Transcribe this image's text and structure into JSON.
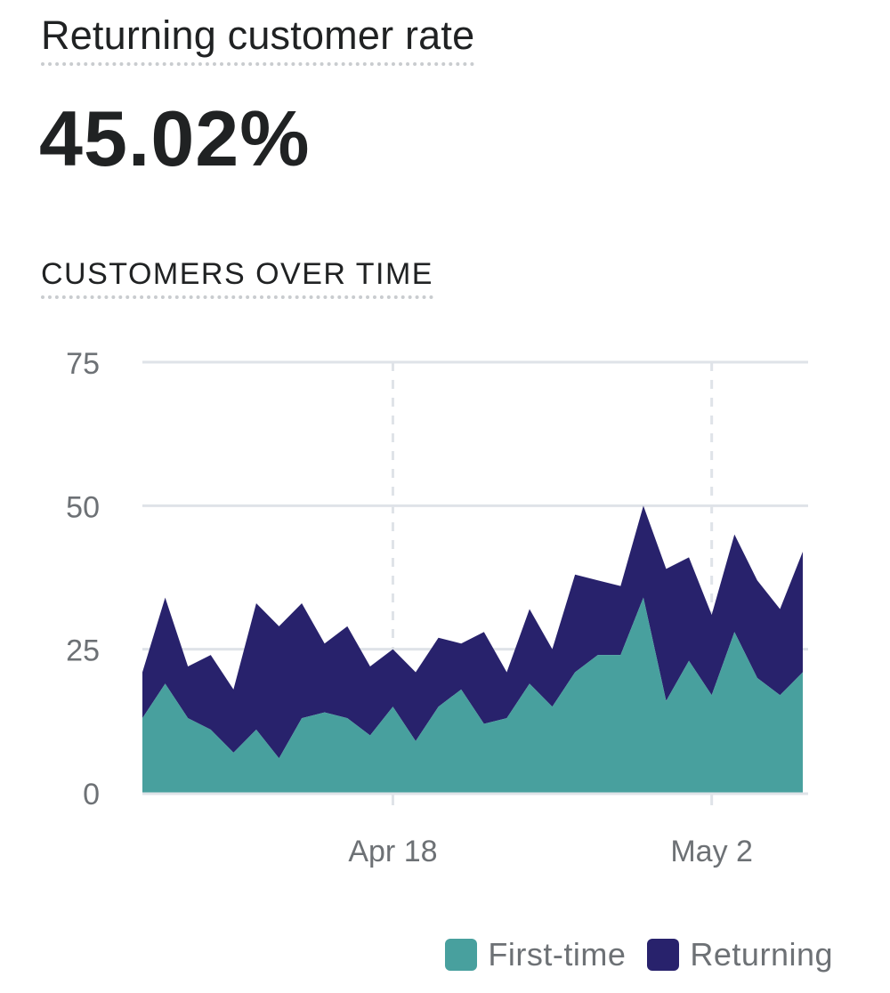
{
  "metric": {
    "title": "Returning customer rate",
    "value": "45.02%"
  },
  "section": {
    "title": "CUSTOMERS OVER TIME"
  },
  "colors": {
    "first_time": "#48a09e",
    "returning": "#28226c",
    "grid": "#dfe3e8",
    "axis_text": "#6d7175"
  },
  "chart_data": {
    "type": "area",
    "stacked": true,
    "x": [
      "Apr 7",
      "Apr 8",
      "Apr 9",
      "Apr 10",
      "Apr 11",
      "Apr 12",
      "Apr 13",
      "Apr 14",
      "Apr 15",
      "Apr 16",
      "Apr 17",
      "Apr 18",
      "Apr 19",
      "Apr 20",
      "Apr 21",
      "Apr 22",
      "Apr 23",
      "Apr 24",
      "Apr 25",
      "Apr 26",
      "Apr 27",
      "Apr 28",
      "Apr 29",
      "Apr 30",
      "May 1",
      "May 2",
      "May 3",
      "May 4",
      "May 5",
      "May 6"
    ],
    "x_tick_labels": [
      {
        "label": "Apr 18",
        "x": "Apr 18"
      },
      {
        "label": "May 2",
        "x": "May 2"
      }
    ],
    "series": [
      {
        "name": "First-time",
        "values": [
          13,
          19,
          13,
          11,
          7,
          11,
          6,
          13,
          14,
          13,
          10,
          15,
          9,
          15,
          18,
          12,
          13,
          19,
          15,
          21,
          24,
          24,
          34,
          16,
          23,
          17,
          28,
          20,
          17,
          21
        ]
      },
      {
        "name": "Returning",
        "values": [
          8,
          15,
          9,
          13,
          11,
          22,
          23,
          20,
          12,
          16,
          12,
          10,
          12,
          12,
          8,
          16,
          8,
          13,
          10,
          17,
          13,
          12,
          16,
          23,
          18,
          14,
          17,
          17,
          15,
          21
        ]
      }
    ],
    "ylim": [
      0,
      75
    ],
    "yticks": [
      0,
      25,
      50,
      75
    ],
    "grid": true,
    "legend": "bottom-right"
  }
}
